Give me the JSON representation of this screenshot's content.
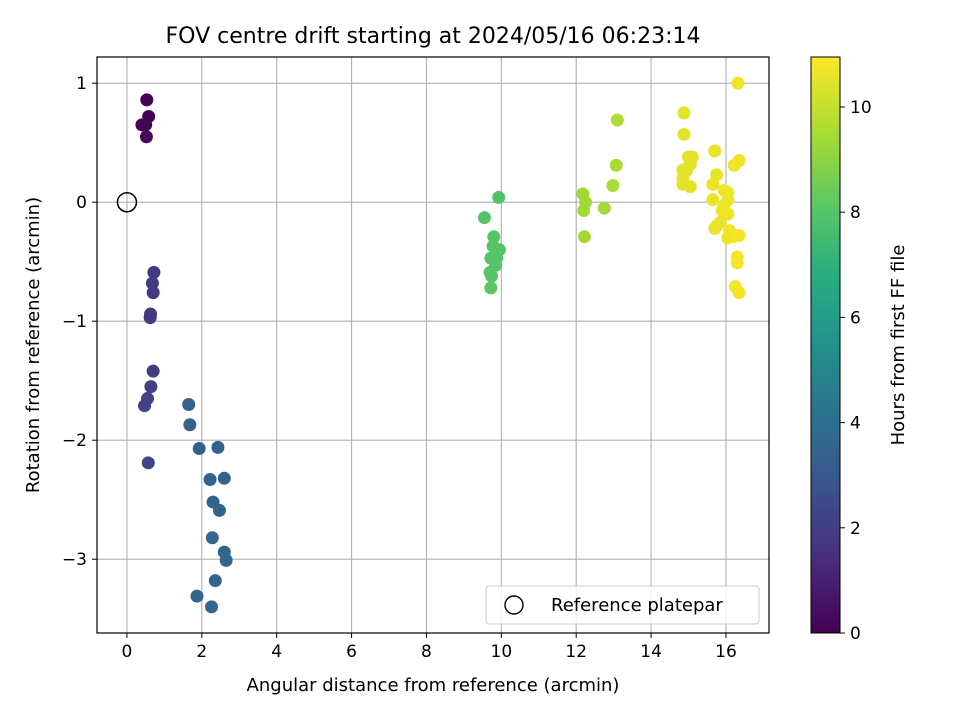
{
  "chart_data": {
    "type": "scatter",
    "title": "FOV centre drift starting at 2024/05/16 06:23:14",
    "xlabel": "Angular distance from reference (arcmin)",
    "ylabel": "Rotation from reference (arcmin)",
    "xlim": [
      -0.8,
      17.15
    ],
    "ylim": [
      -3.62,
      1.22
    ],
    "xticks": [
      0,
      2,
      4,
      6,
      8,
      10,
      12,
      14,
      16
    ],
    "xtick_labels": [
      "0",
      "2",
      "4",
      "6",
      "8",
      "10",
      "12",
      "14",
      "16"
    ],
    "yticks": [
      1,
      0,
      -1,
      -2,
      -3
    ],
    "ytick_labels": [
      "1",
      "0",
      "−1",
      "−2",
      "−3"
    ],
    "grid": true,
    "legend_position": "lower-right",
    "reference": {
      "name": "Reference platepar",
      "x": 0,
      "y": 0
    },
    "colorbar": {
      "label": "Hours from first FF file",
      "colormap": "viridis",
      "range": [
        0,
        10.95
      ],
      "ticks": [
        0,
        2,
        4,
        6,
        8,
        10
      ],
      "tick_labels": [
        "0",
        "2",
        "4",
        "6",
        "8",
        "10"
      ]
    },
    "points": [
      {
        "x": 0.53,
        "y": 0.86,
        "h": 0.1
      },
      {
        "x": 0.58,
        "y": 0.72,
        "h": 0.1
      },
      {
        "x": 0.4,
        "y": 0.65,
        "h": 0.1
      },
      {
        "x": 0.5,
        "y": 0.65,
        "h": 0.1
      },
      {
        "x": 0.52,
        "y": 0.55,
        "h": 0.2
      },
      {
        "x": 0.72,
        "y": -0.59,
        "h": 1.9
      },
      {
        "x": 0.68,
        "y": -0.68,
        "h": 1.9
      },
      {
        "x": 0.7,
        "y": -0.76,
        "h": 1.9
      },
      {
        "x": 0.63,
        "y": -0.94,
        "h": 1.9
      },
      {
        "x": 0.62,
        "y": -0.97,
        "h": 1.9
      },
      {
        "x": 0.7,
        "y": -1.42,
        "h": 2.0
      },
      {
        "x": 0.64,
        "y": -1.55,
        "h": 2.1
      },
      {
        "x": 0.55,
        "y": -1.65,
        "h": 2.2
      },
      {
        "x": 0.47,
        "y": -1.71,
        "h": 2.2
      },
      {
        "x": 0.57,
        "y": -2.19,
        "h": 2.3
      },
      {
        "x": 1.65,
        "y": -1.7,
        "h": 3.4
      },
      {
        "x": 1.68,
        "y": -1.87,
        "h": 3.4
      },
      {
        "x": 1.93,
        "y": -2.07,
        "h": 3.4
      },
      {
        "x": 2.43,
        "y": -2.06,
        "h": 3.4
      },
      {
        "x": 2.22,
        "y": -2.33,
        "h": 3.5
      },
      {
        "x": 2.6,
        "y": -2.32,
        "h": 3.5
      },
      {
        "x": 2.3,
        "y": -2.52,
        "h": 3.5
      },
      {
        "x": 2.47,
        "y": -2.59,
        "h": 3.5
      },
      {
        "x": 2.28,
        "y": -2.82,
        "h": 3.6
      },
      {
        "x": 2.6,
        "y": -2.94,
        "h": 3.6
      },
      {
        "x": 2.65,
        "y": -3.01,
        "h": 3.6
      },
      {
        "x": 2.36,
        "y": -3.18,
        "h": 3.6
      },
      {
        "x": 1.87,
        "y": -3.31,
        "h": 3.6
      },
      {
        "x": 2.26,
        "y": -3.4,
        "h": 3.6
      },
      {
        "x": 9.55,
        "y": -0.13,
        "h": 7.9
      },
      {
        "x": 9.93,
        "y": 0.04,
        "h": 7.9
      },
      {
        "x": 9.8,
        "y": -0.29,
        "h": 8.0
      },
      {
        "x": 9.78,
        "y": -0.37,
        "h": 8.0
      },
      {
        "x": 9.95,
        "y": -0.4,
        "h": 8.0
      },
      {
        "x": 9.72,
        "y": -0.47,
        "h": 8.0
      },
      {
        "x": 9.88,
        "y": -0.47,
        "h": 8.0
      },
      {
        "x": 9.85,
        "y": -0.53,
        "h": 8.0
      },
      {
        "x": 9.7,
        "y": -0.59,
        "h": 8.0
      },
      {
        "x": 9.74,
        "y": -0.62,
        "h": 8.0
      },
      {
        "x": 9.72,
        "y": -0.72,
        "h": 8.1
      },
      {
        "x": 13.1,
        "y": 0.69,
        "h": 9.6
      },
      {
        "x": 13.07,
        "y": 0.31,
        "h": 9.5
      },
      {
        "x": 12.98,
        "y": 0.14,
        "h": 9.5
      },
      {
        "x": 12.18,
        "y": 0.07,
        "h": 9.4
      },
      {
        "x": 12.25,
        "y": 0.0,
        "h": 9.4
      },
      {
        "x": 12.75,
        "y": -0.05,
        "h": 9.4
      },
      {
        "x": 12.2,
        "y": -0.07,
        "h": 9.4
      },
      {
        "x": 12.22,
        "y": -0.29,
        "h": 9.4
      },
      {
        "x": 16.32,
        "y": 1.0,
        "h": 10.7
      },
      {
        "x": 14.88,
        "y": 0.75,
        "h": 10.5
      },
      {
        "x": 14.88,
        "y": 0.57,
        "h": 10.5
      },
      {
        "x": 15.7,
        "y": 0.43,
        "h": 10.6
      },
      {
        "x": 15.0,
        "y": 0.38,
        "h": 10.5
      },
      {
        "x": 15.1,
        "y": 0.38,
        "h": 10.5
      },
      {
        "x": 16.35,
        "y": 0.35,
        "h": 10.7
      },
      {
        "x": 16.22,
        "y": 0.31,
        "h": 10.7
      },
      {
        "x": 15.05,
        "y": 0.32,
        "h": 10.5
      },
      {
        "x": 14.85,
        "y": 0.27,
        "h": 10.5
      },
      {
        "x": 14.95,
        "y": 0.27,
        "h": 10.5
      },
      {
        "x": 15.75,
        "y": 0.23,
        "h": 10.6
      },
      {
        "x": 14.85,
        "y": 0.2,
        "h": 10.5
      },
      {
        "x": 14.85,
        "y": 0.15,
        "h": 10.5
      },
      {
        "x": 15.05,
        "y": 0.13,
        "h": 10.5
      },
      {
        "x": 15.65,
        "y": 0.15,
        "h": 10.6
      },
      {
        "x": 15.95,
        "y": 0.1,
        "h": 10.7
      },
      {
        "x": 16.05,
        "y": 0.08,
        "h": 10.7
      },
      {
        "x": 15.65,
        "y": 0.02,
        "h": 10.6
      },
      {
        "x": 16.05,
        "y": 0.02,
        "h": 10.7
      },
      {
        "x": 15.95,
        "y": -0.03,
        "h": 10.7
      },
      {
        "x": 15.9,
        "y": -0.07,
        "h": 10.7
      },
      {
        "x": 16.05,
        "y": -0.1,
        "h": 10.7
      },
      {
        "x": 15.85,
        "y": -0.17,
        "h": 10.6
      },
      {
        "x": 15.75,
        "y": -0.2,
        "h": 10.6
      },
      {
        "x": 15.7,
        "y": -0.22,
        "h": 10.6
      },
      {
        "x": 16.1,
        "y": -0.24,
        "h": 10.7
      },
      {
        "x": 16.35,
        "y": -0.28,
        "h": 10.8
      },
      {
        "x": 16.2,
        "y": -0.29,
        "h": 10.8
      },
      {
        "x": 16.05,
        "y": -0.3,
        "h": 10.7
      },
      {
        "x": 16.3,
        "y": -0.46,
        "h": 10.8
      },
      {
        "x": 16.3,
        "y": -0.51,
        "h": 10.8
      },
      {
        "x": 16.25,
        "y": -0.71,
        "h": 10.8
      },
      {
        "x": 16.35,
        "y": -0.76,
        "h": 10.8
      }
    ]
  }
}
